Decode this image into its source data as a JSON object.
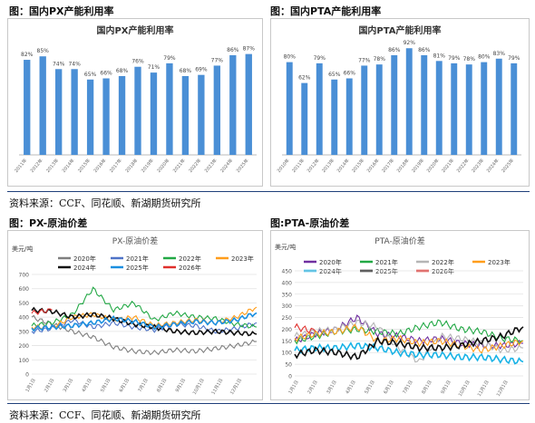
{
  "panels": {
    "tl": {
      "label": "图：国内PX产能利用率"
    },
    "tr": {
      "label": "图：国内PTA产能利用率"
    },
    "bl": {
      "label": "图：PX-原油价差"
    },
    "br": {
      "label": "图:PTA-原油价差"
    }
  },
  "source_top": "资料来源：CCF、同花顺、新湖期货研究所",
  "source_bottom": "资料来源：CCF、同花顺、新湖期货研究所",
  "colors": {
    "bar": "#4a8fd6",
    "rule": "#1f3f7a",
    "s2020": "#7f7f7f",
    "s2021": "#4e73c7",
    "s2022": "#22a845",
    "s2023": "#ff9d1a",
    "s2024": "#111111",
    "s2025": "#1a8fe0",
    "s2026": "#e0302d",
    "s2020_pta": "#7030a0",
    "s2021_pta": "#22a845",
    "s2022_pta": "#b5b5b5",
    "s2023_pta": "#ff9d1a",
    "s2024_pta": "#1ab3e6",
    "s2025_pta": "#111111",
    "s2026_pta": "#e0302d"
  },
  "chart_data": [
    {
      "id": "px_util",
      "type": "bar",
      "title": "国内PX产能利用率",
      "categories": [
        "2011年",
        "2012年",
        "2013年",
        "2014年",
        "2015年",
        "2016年",
        "2017年",
        "2018年",
        "2019年",
        "2020年",
        "2021年",
        "2022年",
        "2023年",
        "2024年",
        "2025年"
      ],
      "values": [
        82,
        85,
        74,
        74,
        65,
        66,
        68,
        76,
        71,
        79,
        68,
        69,
        77,
        86,
        87
      ],
      "data_labels": [
        "82%",
        "85%",
        "74%",
        "74%",
        "65%",
        "66%",
        "68%",
        "76%",
        "71%",
        "79%",
        "68%",
        "69%",
        "77%",
        "86%",
        "87%"
      ],
      "ylim": [
        0,
        100
      ],
      "grid": false
    },
    {
      "id": "pta_util",
      "type": "bar",
      "title": "国内PTA产能利用率",
      "categories": [
        "2010年",
        "2011年",
        "2012年",
        "2013年",
        "2014年",
        "2015年",
        "2016年",
        "2017年",
        "2018年",
        "2019年",
        "2020年",
        "2021年",
        "2022年",
        "2023年",
        "2024年",
        "2025年"
      ],
      "values": [
        80,
        62,
        79,
        65,
        66,
        77,
        78,
        86,
        92,
        86,
        81,
        79,
        78,
        80,
        83,
        79
      ],
      "data_labels": [
        "80%",
        "62%",
        "79%",
        "65%",
        "66%",
        "77%",
        "78%",
        "86%",
        "92%",
        "86%",
        "81%",
        "79%",
        "78%",
        "80%",
        "83%",
        "79%"
      ],
      "ylim": [
        0,
        100
      ],
      "grid": false
    },
    {
      "id": "px_spread",
      "type": "line",
      "title": "PX-原油价差",
      "ylabel": "美元/吨",
      "ylim": [
        0,
        700
      ],
      "yticks": [
        "0",
        "100",
        "200",
        "300",
        "400",
        "500",
        "600",
        "700"
      ],
      "xticks": [
        "1月1日",
        "2月1日",
        "3月1日",
        "4月1日",
        "5月1日",
        "6月1日",
        "7月1日",
        "8月1日",
        "9月1日",
        "10月1日",
        "11月1日",
        "12月1日"
      ],
      "legend_position": "top",
      "grid": true,
      "series": [
        {
          "name": "2020年",
          "color_key": "s2020",
          "values": [
            400,
            350,
            300,
            260,
            190,
            160,
            150,
            170,
            160,
            180,
            200,
            230
          ]
        },
        {
          "name": "2021年",
          "color_key": "s2021",
          "values": [
            300,
            320,
            380,
            330,
            360,
            330,
            310,
            350,
            340,
            300,
            320,
            360
          ]
        },
        {
          "name": "2022年",
          "color_key": "s2022",
          "values": [
            340,
            360,
            420,
            600,
            450,
            500,
            380,
            430,
            400,
            390,
            350,
            330
          ]
        },
        {
          "name": "2023年",
          "color_key": "s2023",
          "values": [
            330,
            330,
            400,
            420,
            380,
            400,
            340,
            360,
            380,
            360,
            400,
            470
          ]
        },
        {
          "name": "2024年",
          "color_key": "s2024",
          "values": [
            450,
            440,
            400,
            420,
            390,
            350,
            330,
            300,
            290,
            300,
            290,
            280
          ]
        },
        {
          "name": "2025年",
          "color_key": "s2025",
          "values": [
            320,
            330,
            340,
            360,
            390,
            370,
            330,
            350,
            370,
            360,
            380,
            430
          ]
        },
        {
          "name": "2026年",
          "color_key": "s2026",
          "values": [
            430,
            450
          ]
        }
      ]
    },
    {
      "id": "pta_spread",
      "type": "line",
      "title": "PTA-原油价差",
      "ylabel": "美元/吨",
      "ylim": [
        0,
        450
      ],
      "yticks": [
        "0",
        "50",
        "100",
        "150",
        "200",
        "250",
        "300",
        "350",
        "400",
        "450"
      ],
      "xticks": [
        "1月1日",
        "2月1日",
        "3月1日",
        "4月1日",
        "5月1日",
        "6月1日",
        "7月1日",
        "8月1日",
        "9月1日",
        "10月1日",
        "11月1日",
        "12月1日"
      ],
      "legend_position": "top",
      "grid": true,
      "series": [
        {
          "name": "2020年",
          "color_key": "s2020_pta",
          "values": [
            150,
            180,
            200,
            250,
            180,
            170,
            150,
            160,
            140,
            130,
            130,
            140
          ]
        },
        {
          "name": "2021年",
          "color_key": "s2021_pta",
          "values": [
            150,
            170,
            190,
            200,
            190,
            180,
            210,
            230,
            200,
            190,
            160,
            150
          ]
        },
        {
          "name": "2022年",
          "color_key": "s2022_pta",
          "values": [
            170,
            190,
            200,
            230,
            210,
            120,
            60,
            170,
            160,
            140,
            110,
            120
          ]
        },
        {
          "name": "2023年",
          "color_key": "s2023_pta",
          "values": [
            160,
            180,
            190,
            210,
            150,
            160,
            140,
            150,
            130,
            110,
            130,
            150
          ]
        },
        {
          "name": "2024年",
          "color_key": "s2024_pta",
          "values": [
            110,
            120,
            120,
            130,
            120,
            100,
            90,
            90,
            80,
            80,
            70,
            60
          ]
        },
        {
          "name": "2025年",
          "color_key": "s2025_pta",
          "values": [
            90,
            110,
            100,
            80,
            150,
            140,
            120,
            120,
            130,
            150,
            170,
            210
          ]
        },
        {
          "name": "2026年",
          "color_key": "s2026_pta",
          "values": [
            210,
            190
          ]
        }
      ]
    }
  ]
}
